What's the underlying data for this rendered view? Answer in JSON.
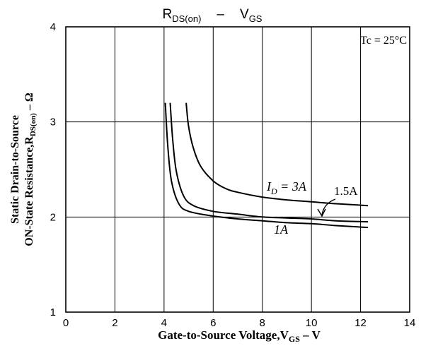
{
  "chart_data": {
    "type": "line",
    "title_main": "R",
    "title_main_sub": "DS(on)",
    "title_dash": "–",
    "title_second": "V",
    "title_second_sub": "GS",
    "xlabel_main": "Gate-to-Source Voltage,V",
    "xlabel_sub": "GS",
    "xlabel_unit": " – V",
    "ylabel_line1": "Static Drain-to-Source",
    "ylabel_line2_main": "ON-State Resistance,R",
    "ylabel_line2_sub": "DS(on)",
    "ylabel_line2_unit": " – Ω",
    "xlim": [
      0,
      14
    ],
    "ylim": [
      1,
      4
    ],
    "xticks": [
      "0",
      "2",
      "4",
      "6",
      "8",
      "10",
      "12",
      "14"
    ],
    "yticks": [
      "1",
      "2",
      "3",
      "4"
    ],
    "grid": true,
    "condition_label": "Tc = 25°C",
    "series": [
      {
        "label": "I",
        "label_sub": "D",
        "label_rest": " = 3A",
        "x": [
          4.9,
          5.0,
          5.2,
          5.5,
          6.0,
          6.5,
          7.0,
          8.0,
          9.0,
          10.0,
          11.0,
          12.3
        ],
        "y": [
          3.2,
          2.95,
          2.72,
          2.53,
          2.38,
          2.3,
          2.26,
          2.21,
          2.18,
          2.16,
          2.14,
          2.12
        ]
      },
      {
        "label": "1.5A",
        "x": [
          4.25,
          4.35,
          4.5,
          4.8,
          5.2,
          6.0,
          7.0,
          8.0,
          9.0,
          10.0,
          11.0,
          12.3
        ],
        "y": [
          3.2,
          2.82,
          2.48,
          2.22,
          2.12,
          2.06,
          2.03,
          2.0,
          1.99,
          1.98,
          1.96,
          1.95
        ]
      },
      {
        "label": "1A",
        "x": [
          4.05,
          4.15,
          4.3,
          4.6,
          5.0,
          6.0,
          7.0,
          8.0,
          9.0,
          10.0,
          11.0,
          12.3
        ],
        "y": [
          3.2,
          2.75,
          2.38,
          2.14,
          2.06,
          2.01,
          1.98,
          1.96,
          1.94,
          1.93,
          1.91,
          1.89
        ]
      }
    ]
  }
}
